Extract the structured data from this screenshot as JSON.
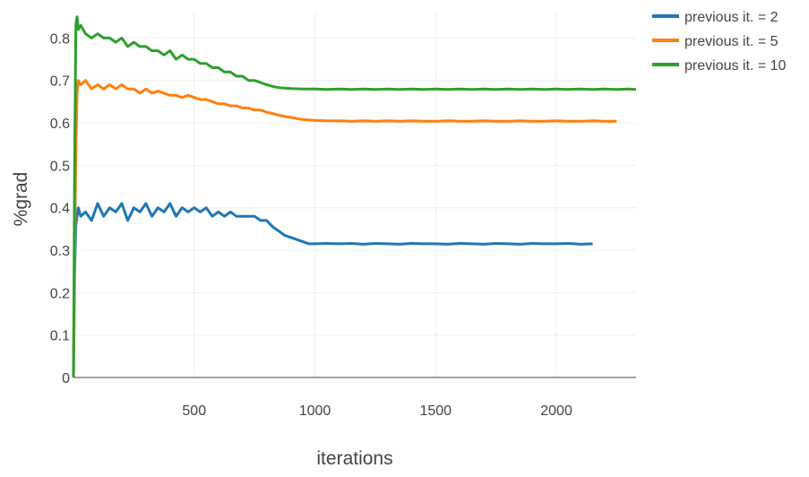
{
  "chart_data": {
    "type": "line",
    "xlabel": "iterations",
    "ylabel": "%grad",
    "xlim": [
      0,
      2330
    ],
    "ylim": [
      0,
      0.86
    ],
    "x_ticks": [
      500,
      1000,
      1500,
      2000
    ],
    "y_ticks": [
      0,
      0.1,
      0.2,
      0.3,
      0.4,
      0.5,
      0.6,
      0.7,
      0.8
    ],
    "grid": true,
    "legend_position": "top-right",
    "series": [
      {
        "name": "previous it. = 2",
        "color": "#1f77b4",
        "x": [
          0,
          5,
          10,
          20,
          30,
          50,
          75,
          100,
          125,
          150,
          175,
          200,
          225,
          250,
          275,
          300,
          325,
          350,
          375,
          400,
          425,
          450,
          475,
          500,
          525,
          550,
          575,
          600,
          625,
          650,
          675,
          700,
          725,
          750,
          775,
          800,
          825,
          850,
          875,
          900,
          925,
          950,
          975,
          1000,
          1050,
          1100,
          1150,
          1200,
          1250,
          1300,
          1350,
          1400,
          1450,
          1500,
          1550,
          1600,
          1650,
          1700,
          1750,
          1800,
          1850,
          1900,
          1950,
          2000,
          2050,
          2100,
          2150
        ],
        "values": [
          0.0,
          0.25,
          0.36,
          0.4,
          0.38,
          0.39,
          0.37,
          0.41,
          0.38,
          0.4,
          0.39,
          0.41,
          0.37,
          0.4,
          0.39,
          0.41,
          0.38,
          0.4,
          0.39,
          0.41,
          0.38,
          0.4,
          0.39,
          0.4,
          0.39,
          0.4,
          0.38,
          0.39,
          0.38,
          0.39,
          0.38,
          0.38,
          0.38,
          0.38,
          0.37,
          0.37,
          0.355,
          0.345,
          0.335,
          0.33,
          0.325,
          0.32,
          0.315,
          0.315,
          0.316,
          0.315,
          0.316,
          0.314,
          0.316,
          0.315,
          0.314,
          0.316,
          0.315,
          0.315,
          0.314,
          0.316,
          0.315,
          0.314,
          0.316,
          0.315,
          0.314,
          0.316,
          0.315,
          0.315,
          0.316,
          0.314,
          0.315
        ]
      },
      {
        "name": "previous it. = 5",
        "color": "#ff7f0e",
        "x": [
          0,
          5,
          10,
          15,
          20,
          30,
          50,
          75,
          100,
          125,
          150,
          175,
          200,
          225,
          250,
          275,
          300,
          325,
          350,
          375,
          400,
          425,
          450,
          475,
          500,
          525,
          550,
          575,
          600,
          625,
          650,
          675,
          700,
          725,
          750,
          775,
          800,
          825,
          850,
          875,
          900,
          925,
          950,
          975,
          1000,
          1050,
          1100,
          1150,
          1200,
          1250,
          1300,
          1350,
          1400,
          1450,
          1500,
          1550,
          1600,
          1650,
          1700,
          1750,
          1800,
          1850,
          1900,
          1950,
          2000,
          2050,
          2100,
          2150,
          2200,
          2250
        ],
        "values": [
          0.0,
          0.3,
          0.53,
          0.67,
          0.7,
          0.69,
          0.7,
          0.68,
          0.69,
          0.68,
          0.69,
          0.68,
          0.69,
          0.68,
          0.68,
          0.67,
          0.68,
          0.67,
          0.675,
          0.67,
          0.665,
          0.665,
          0.66,
          0.665,
          0.66,
          0.655,
          0.655,
          0.65,
          0.645,
          0.645,
          0.64,
          0.64,
          0.635,
          0.635,
          0.63,
          0.63,
          0.625,
          0.622,
          0.618,
          0.615,
          0.613,
          0.61,
          0.608,
          0.607,
          0.606,
          0.605,
          0.605,
          0.604,
          0.605,
          0.604,
          0.605,
          0.604,
          0.605,
          0.604,
          0.604,
          0.605,
          0.604,
          0.604,
          0.605,
          0.604,
          0.604,
          0.605,
          0.604,
          0.604,
          0.605,
          0.604,
          0.604,
          0.605,
          0.604,
          0.604
        ]
      },
      {
        "name": "previous it. = 10",
        "color": "#2ca02c",
        "x": [
          0,
          5,
          10,
          15,
          20,
          30,
          50,
          75,
          100,
          125,
          150,
          175,
          200,
          225,
          250,
          275,
          300,
          325,
          350,
          375,
          400,
          425,
          450,
          475,
          500,
          525,
          550,
          575,
          600,
          625,
          650,
          675,
          700,
          725,
          750,
          775,
          800,
          825,
          850,
          900,
          950,
          1000,
          1050,
          1100,
          1150,
          1200,
          1250,
          1300,
          1350,
          1400,
          1450,
          1500,
          1550,
          1600,
          1650,
          1700,
          1750,
          1800,
          1850,
          1900,
          1950,
          2000,
          2050,
          2100,
          2150,
          2200,
          2250,
          2300,
          2330
        ],
        "values": [
          0.0,
          0.5,
          0.83,
          0.85,
          0.82,
          0.83,
          0.81,
          0.8,
          0.81,
          0.8,
          0.8,
          0.79,
          0.8,
          0.78,
          0.79,
          0.78,
          0.78,
          0.77,
          0.77,
          0.76,
          0.77,
          0.75,
          0.76,
          0.75,
          0.75,
          0.74,
          0.74,
          0.73,
          0.73,
          0.72,
          0.72,
          0.71,
          0.71,
          0.7,
          0.7,
          0.695,
          0.69,
          0.686,
          0.683,
          0.681,
          0.68,
          0.68,
          0.679,
          0.68,
          0.679,
          0.68,
          0.679,
          0.68,
          0.679,
          0.68,
          0.679,
          0.68,
          0.679,
          0.68,
          0.679,
          0.68,
          0.679,
          0.68,
          0.679,
          0.68,
          0.679,
          0.68,
          0.679,
          0.68,
          0.679,
          0.68,
          0.679,
          0.68,
          0.679
        ]
      }
    ]
  }
}
